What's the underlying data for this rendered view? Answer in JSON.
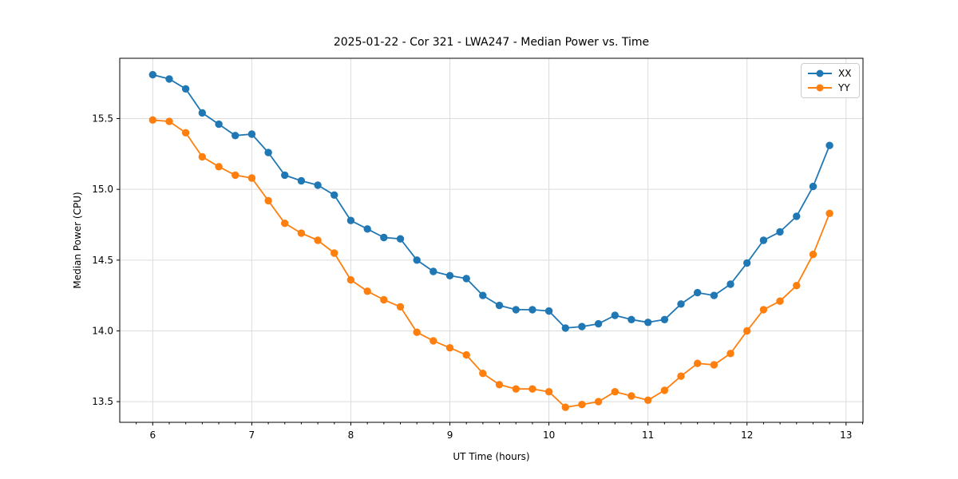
{
  "chart_data": {
    "type": "line",
    "title": "2025-01-22 - Cor 321 - LWA247 - Median Power vs. Time",
    "xlabel": "UT Time (hours)",
    "ylabel": "Median Power (CPU)",
    "xlim": [
      5.667,
      13.171
    ],
    "ylim": [
      13.354,
      15.926
    ],
    "xticks": [
      6,
      7,
      8,
      9,
      10,
      11,
      12,
      13
    ],
    "yticks": [
      13.5,
      14.0,
      14.5,
      15.0,
      15.5
    ],
    "x_minor_step": 0.16667,
    "grid": true,
    "legend_position": "upper right",
    "x": [
      6.0,
      6.167,
      6.333,
      6.5,
      6.667,
      6.833,
      7.0,
      7.167,
      7.333,
      7.5,
      7.667,
      7.833,
      8.0,
      8.167,
      8.333,
      8.5,
      8.667,
      8.833,
      9.0,
      9.167,
      9.333,
      9.5,
      9.667,
      9.833,
      10.0,
      10.167,
      10.333,
      10.5,
      10.667,
      10.833,
      11.0,
      11.167,
      11.333,
      11.5,
      11.667,
      11.833,
      12.0,
      12.167,
      12.333,
      12.5,
      12.667,
      12.833
    ],
    "series": [
      {
        "name": "XX",
        "color": "#1f77b4",
        "marker": "circle",
        "values": [
          15.81,
          15.78,
          15.71,
          15.54,
          15.46,
          15.38,
          15.39,
          15.26,
          15.1,
          15.06,
          15.03,
          14.96,
          14.78,
          14.72,
          14.66,
          14.65,
          14.5,
          14.42,
          14.39,
          14.37,
          14.25,
          14.18,
          14.15,
          14.15,
          14.14,
          14.02,
          14.03,
          14.05,
          14.11,
          14.08,
          14.06,
          14.08,
          14.19,
          14.27,
          14.25,
          14.33,
          14.48,
          14.64,
          14.7,
          14.81,
          15.02,
          15.31
        ]
      },
      {
        "name": "YY",
        "color": "#ff7f0e",
        "marker": "circle",
        "values": [
          15.49,
          15.48,
          15.4,
          15.23,
          15.16,
          15.1,
          15.08,
          14.92,
          14.76,
          14.69,
          14.64,
          14.55,
          14.36,
          14.28,
          14.22,
          14.17,
          13.99,
          13.93,
          13.88,
          13.83,
          13.7,
          13.62,
          13.59,
          13.59,
          13.57,
          13.46,
          13.48,
          13.5,
          13.57,
          13.54,
          13.51,
          13.58,
          13.68,
          13.77,
          13.76,
          13.84,
          14.0,
          14.15,
          14.21,
          14.32,
          14.54,
          14.83
        ]
      }
    ]
  }
}
